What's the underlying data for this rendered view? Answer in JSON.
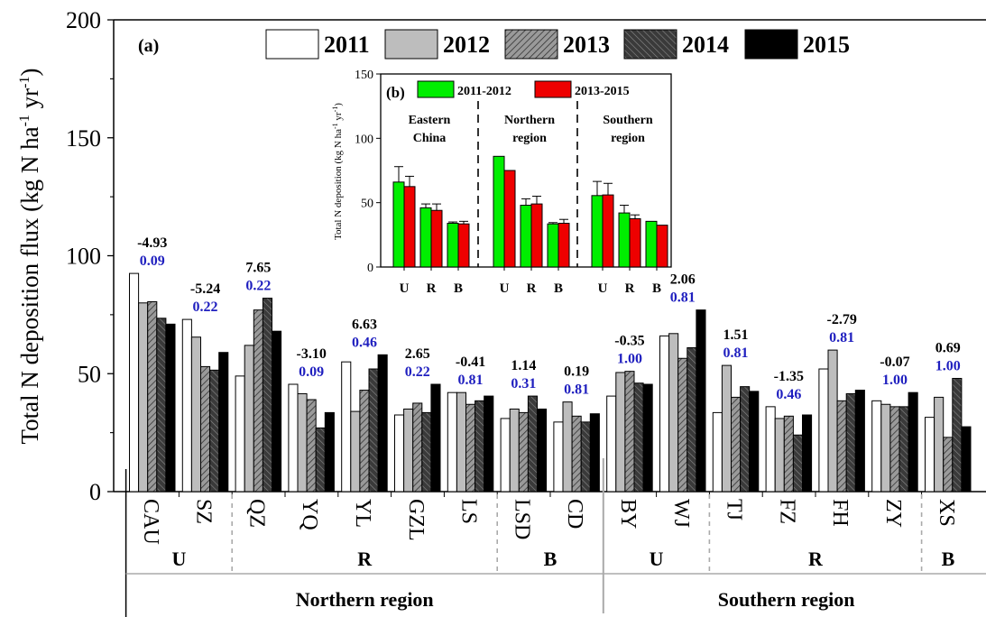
{
  "colors": {
    "y2011": "#ffffff",
    "y2012": "#bdbdbd",
    "y2013": "#7f7f7f",
    "y2014": "#404040",
    "y2015": "#000000",
    "p_value": "#1f1fbf",
    "inset_a": "#00ee00",
    "inset_b": "#ee0000"
  },
  "chart_data": [
    {
      "type": "bar",
      "panel_label": "(a)",
      "ylabel": "Total N deposition flux (kg N ha-1 yr-1)",
      "ylabel_main": "Total N deposition flux (kg N ha",
      "ylabel_sup1": "-1",
      "ylabel_mid": " yr",
      "ylabel_sup2": "-1",
      "ylabel_end": ")",
      "ylim": [
        0,
        200
      ],
      "yticks": [
        0,
        50,
        100,
        150,
        200
      ],
      "categories": [
        "CAU",
        "SZ",
        "QZ",
        "YQ",
        "YL",
        "GZL",
        "LS",
        "LSD",
        "CD",
        "BY",
        "WJ",
        "TJ",
        "FZ",
        "FH",
        "ZY",
        "XS"
      ],
      "series": [
        {
          "name": "2011",
          "values": [
            92.5,
            73,
            49,
            45.5,
            55,
            32.5,
            42,
            31,
            29.5,
            40.5,
            66,
            33.5,
            36,
            52,
            38.5,
            31.5
          ]
        },
        {
          "name": "2012",
          "values": [
            80,
            65.5,
            62,
            41.5,
            34,
            35,
            42,
            35,
            38,
            50.5,
            67,
            53.5,
            31,
            60,
            37,
            40
          ]
        },
        {
          "name": "2013",
          "values": [
            80.5,
            53,
            77,
            39,
            43,
            37.5,
            37,
            33.5,
            32,
            51,
            56.5,
            40,
            32,
            38.5,
            36,
            23
          ]
        },
        {
          "name": "2014",
          "values": [
            73.5,
            51.5,
            82,
            27,
            52,
            33.5,
            38.5,
            40.5,
            29.5,
            46,
            61,
            44.5,
            24,
            41.5,
            36,
            48
          ]
        },
        {
          "name": "2015",
          "values": [
            71,
            59,
            68,
            33.5,
            58,
            45.5,
            40.5,
            35,
            33,
            45.5,
            77,
            42.5,
            32.5,
            43,
            42,
            27.5
          ]
        }
      ],
      "annotations": {
        "slope": [
          "-4.93",
          "-5.24",
          "7.65",
          "-3.10",
          "6.63",
          "2.65",
          "-0.41",
          "1.14",
          "0.19",
          "-0.35",
          "2.06",
          "1.51",
          "-1.35",
          "-2.79",
          "-0.07",
          "0.69"
        ],
        "p": [
          "0.09",
          "0.22",
          "0.22",
          "0.09",
          "0.46",
          "0.22",
          "0.81",
          "0.31",
          "0.81",
          "1.00",
          "0.81",
          "0.81",
          "0.46",
          "0.81",
          "1.00",
          "1.00"
        ]
      },
      "groups": [
        {
          "label": "U",
          "region": "Northern region"
        },
        {
          "label": "R",
          "region": "Northern region"
        },
        {
          "label": "B",
          "region": "Northern region"
        },
        {
          "label": "U",
          "region": "Southern region"
        },
        {
          "label": "R",
          "region": "Southern region"
        },
        {
          "label": "B",
          "region": "Southern region"
        }
      ],
      "regions": [
        "Northern region",
        "Southern region"
      ],
      "legend": [
        "2011",
        "2012",
        "2013",
        "2014",
        "2015"
      ],
      "legend_position": "top"
    },
    {
      "type": "bar",
      "panel_label": "(b)",
      "ylabel_main": "Total N deposition (kg N ha",
      "ylabel_sup1": "-1",
      "ylabel_mid": " yr",
      "ylabel_sup2": "-1",
      "ylabel_end": ")",
      "ylim": [
        0,
        150
      ],
      "yticks": [
        0,
        50,
        100,
        150
      ],
      "regions": [
        {
          "label_line1": "Eastern",
          "label_line2": "China",
          "categories": [
            "U",
            "R",
            "B"
          ]
        },
        {
          "label_line1": "Northern",
          "label_line2": "region",
          "categories": [
            "U",
            "R",
            "B"
          ]
        },
        {
          "label_line1": "Southern",
          "label_line2": "region",
          "categories": [
            "U",
            "R",
            "B"
          ]
        }
      ],
      "series": [
        {
          "name": "2011-2012",
          "values": [
            66,
            46,
            34,
            86,
            48,
            33.5,
            55.5,
            42,
            35.5
          ],
          "errors": [
            12,
            3,
            1,
            0,
            5,
            1,
            11,
            6,
            0
          ]
        },
        {
          "name": "2013-2015",
          "values": [
            62.5,
            44,
            33.5,
            75,
            49,
            34,
            56,
            37.5,
            32.5
          ],
          "errors": [
            8,
            5,
            2,
            0,
            6,
            3,
            9,
            3,
            0
          ]
        }
      ],
      "legend": [
        "2011-2012",
        "2013-2015"
      ],
      "legend_position": "top"
    }
  ]
}
